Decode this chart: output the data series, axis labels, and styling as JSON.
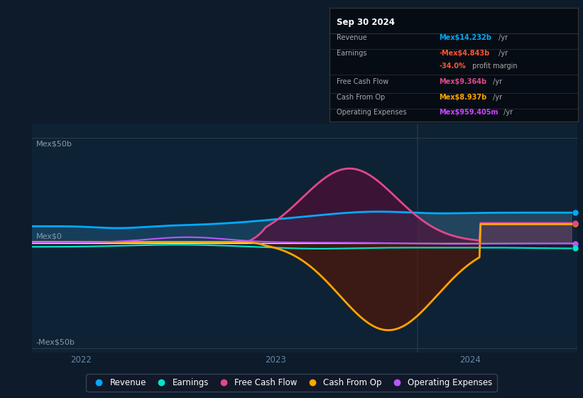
{
  "bg_color": "#0d1b2a",
  "plot_bg_color": "#0e2235",
  "title": "Sep 30 2024",
  "info_box_rows": [
    {
      "label": "Revenue",
      "value_colored": "Mex$14.232b",
      "value_plain": " /yr",
      "color": "#00aaff"
    },
    {
      "label": "Earnings",
      "value_colored": "-Mex$4.843b",
      "value_plain": " /yr",
      "color": "#ff5533"
    },
    {
      "label": "",
      "value_colored": "-34.0%",
      "value_plain": " profit margin",
      "color": "#ff5533"
    },
    {
      "label": "Free Cash Flow",
      "value_colored": "Mex$9.364b",
      "value_plain": " /yr",
      "color": "#e0488b"
    },
    {
      "label": "Cash From Op",
      "value_colored": "Mex$8.937b",
      "value_plain": " /yr",
      "color": "#ffa500"
    },
    {
      "label": "Operating Expenses",
      "value_colored": "Mex$959.405m",
      "value_plain": " /yr",
      "color": "#cc44ff"
    }
  ],
  "ylabel_top": "Mex$50b",
  "ylabel_zero": "Mex$0",
  "ylabel_bot": "-Mex$50b",
  "ylim": [
    -52,
    57
  ],
  "xlim": [
    2021.75,
    2024.55
  ],
  "xticks": [
    2022,
    2023,
    2024
  ],
  "x_vline": 2023.73,
  "series": {
    "revenue": {
      "color": "#00aaff",
      "fill_color": "#1a4a6a",
      "fill_alpha": 0.7,
      "lw": 2.0
    },
    "earnings": {
      "color": "#00e5cc",
      "lw": 1.5
    },
    "free_cash_flow": {
      "color": "#e0488b",
      "fill_color": "#5a0a35",
      "fill_alpha": 0.6,
      "lw": 2.0
    },
    "cash_from_op": {
      "color": "#ffa500",
      "fill_color": "#5a1500",
      "fill_alpha": 0.6,
      "lw": 2.0
    },
    "op_expenses": {
      "color": "#bb55ff",
      "lw": 1.5
    }
  },
  "legend": [
    {
      "label": "Revenue",
      "color": "#00aaff"
    },
    {
      "label": "Earnings",
      "color": "#00e5cc"
    },
    {
      "label": "Free Cash Flow",
      "color": "#e0488b"
    },
    {
      "label": "Cash From Op",
      "color": "#ffa500"
    },
    {
      "label": "Operating Expenses",
      "color": "#bb55ff"
    }
  ]
}
